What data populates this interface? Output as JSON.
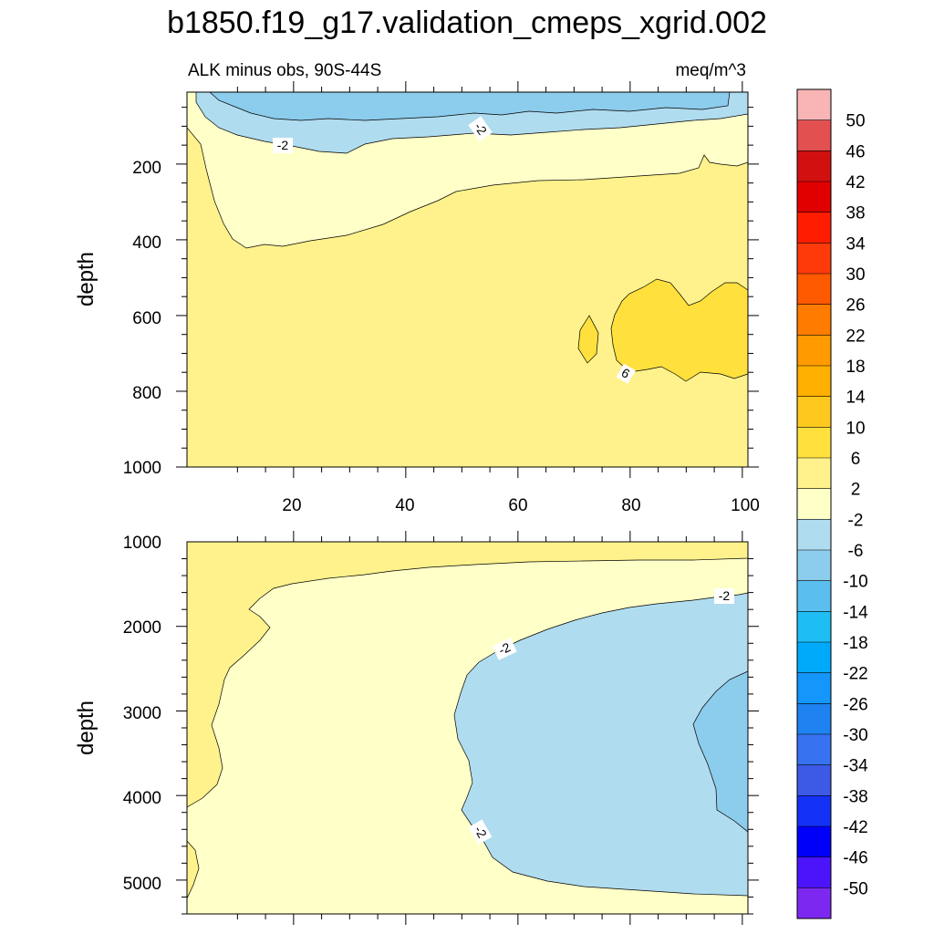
{
  "title": "b1850.f19_g17.validation_cmeps_xgrid.002",
  "subtitle_left": "ALK minus obs, 90S-44S",
  "subtitle_right": "meq/m^3",
  "chart_data": [
    {
      "type": "contour",
      "panel": "upper",
      "ylabel": "depth",
      "xlim": [
        1,
        101
      ],
      "ylim": [
        1000,
        10
      ],
      "y_inverted": true,
      "xticks": [
        "20",
        "40",
        "60",
        "80",
        "100"
      ],
      "yticks": [
        "200",
        "400",
        "600",
        "800",
        "1000"
      ],
      "regions": [
        {
          "level": "-6 to -2",
          "note": "surface band 10-150 m, x 5-100"
        },
        {
          "level": "-2 to 2",
          "note": "shoals from 420 m at x~15 to 190 m at x~100"
        },
        {
          "level": "2 to 6",
          "note": "bulk of section"
        },
        {
          "level": "6 to 10",
          "note": "core 500-780 m, x 78-100"
        }
      ],
      "contour_labels": [
        {
          "text": "-2",
          "x": 18,
          "depth": 140
        },
        {
          "text": "-2",
          "x": 52,
          "depth": 90
        },
        {
          "text": "6",
          "x": 80,
          "depth": 770
        }
      ]
    },
    {
      "type": "contour",
      "panel": "lower",
      "ylabel": "depth",
      "xlim": [
        1,
        101
      ],
      "ylim": [
        5400,
        1000
      ],
      "y_inverted": true,
      "xticks": [],
      "yticks": [
        "1000",
        "2000",
        "3000",
        "4000",
        "5000"
      ],
      "regions": [
        {
          "level": "2 to 6",
          "note": "west wall 1000-4100 m and top band"
        },
        {
          "level": "-2 to 2",
          "note": "background"
        },
        {
          "level": "-6 to -2",
          "note": "eastern lobe 1600-5100 m, x 48-101"
        },
        {
          "level": "-10 to -6",
          "note": "east edge 2500-4400 m"
        }
      ],
      "contour_labels": [
        {
          "text": "-2",
          "x": 98,
          "depth": 1650
        },
        {
          "text": "-2",
          "x": 56,
          "depth": 2250
        },
        {
          "text": "-2",
          "x": 53,
          "depth": 4400
        }
      ]
    }
  ],
  "colorbar": {
    "labels": [
      "50",
      "46",
      "42",
      "38",
      "34",
      "30",
      "26",
      "22",
      "18",
      "14",
      "10",
      "6",
      "2",
      "-2",
      "-6",
      "-10",
      "-14",
      "-18",
      "-22",
      "-26",
      "-30",
      "-34",
      "-38",
      "-42",
      "-46",
      "-50"
    ],
    "colors": [
      "#F9B5B5",
      "#E35050",
      "#D21010",
      "#E00000",
      "#FF1C00",
      "#FF3A0A",
      "#FF5A00",
      "#FF7C00",
      "#FF9B00",
      "#FFB000",
      "#FFC81E",
      "#FFE03C",
      "#FFF28C",
      "#FFFFC8",
      "#B0DCF0",
      "#8CCCEC",
      "#5ABEEE",
      "#1EBEF5",
      "#00AAFA",
      "#1496FA",
      "#1E82F0",
      "#3773F0",
      "#3C5AE6",
      "#1432F5",
      "#0000FA",
      "#4B14FA",
      "#7D28F0"
    ]
  },
  "palette": {
    "dark_blue": "#8CCCEC",
    "light_blue": "#B0DCF0",
    "pale_yellow": "#FFFFC8",
    "yellow": "#FFF28C",
    "gold": "#FFE03C"
  }
}
